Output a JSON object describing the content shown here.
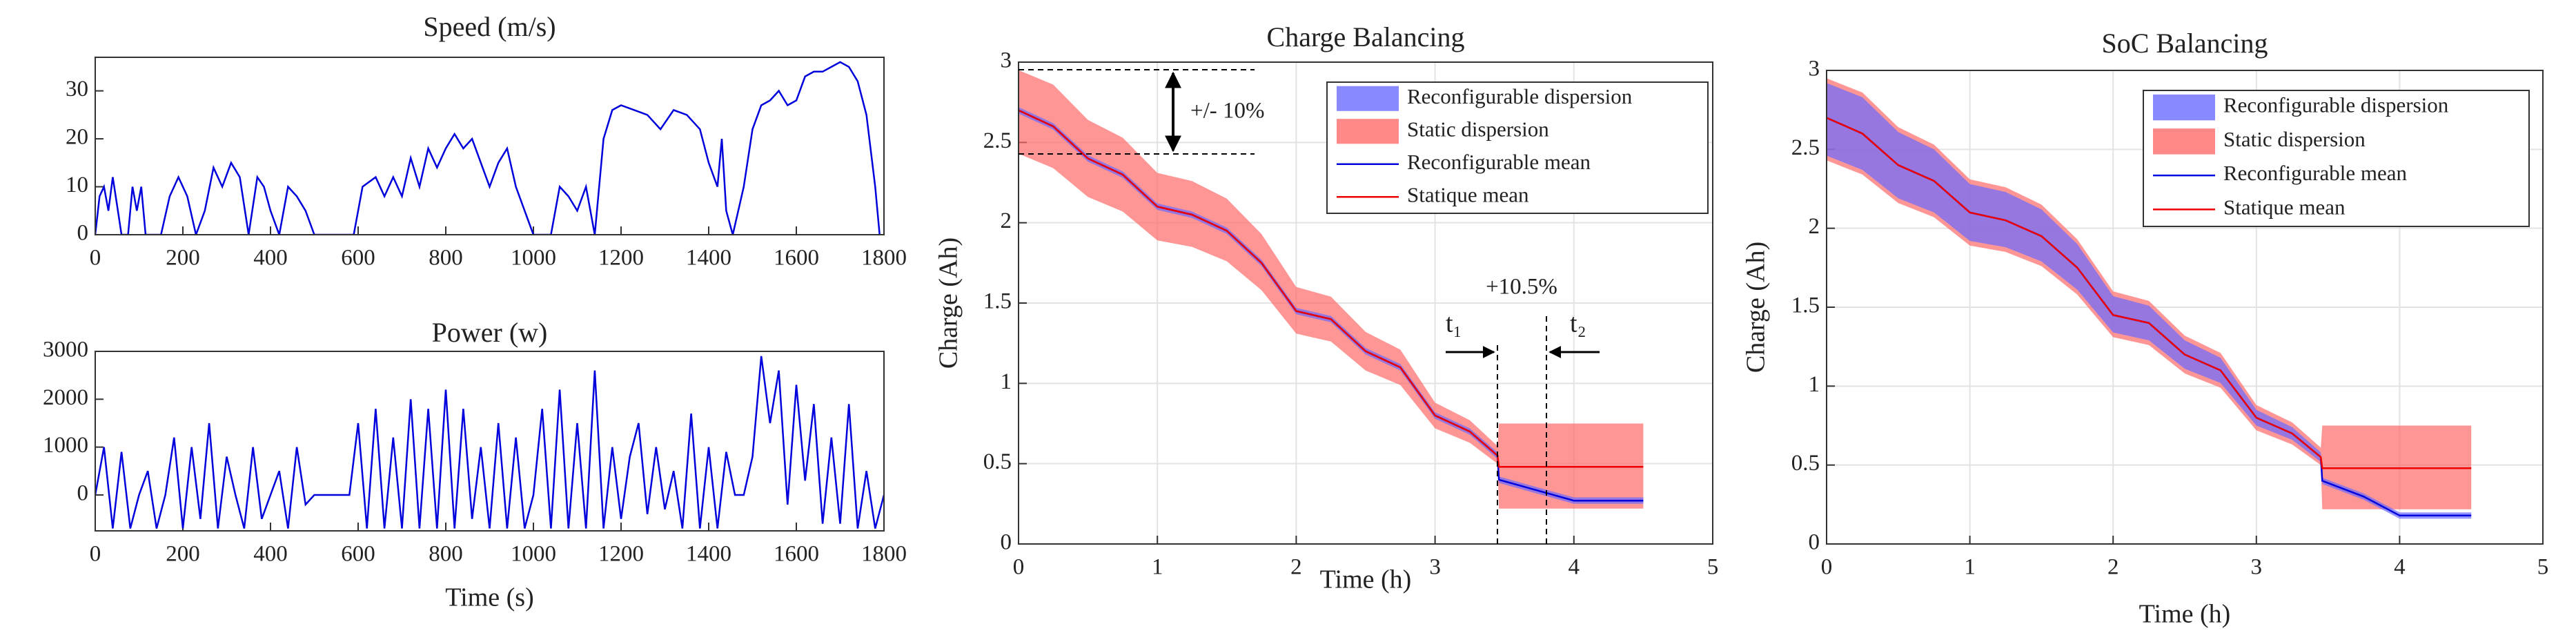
{
  "chart_data": [
    {
      "type": "line",
      "title": "Speed (m/s)",
      "x": [
        0,
        10,
        20,
        30,
        40,
        50,
        60,
        75,
        85,
        95,
        105,
        115,
        150,
        170,
        190,
        210,
        230,
        250,
        270,
        290,
        310,
        330,
        350,
        370,
        385,
        400,
        420,
        440,
        460,
        480,
        500,
        590,
        610,
        640,
        660,
        680,
        700,
        720,
        740,
        760,
        780,
        800,
        820,
        840,
        860,
        880,
        900,
        920,
        940,
        960,
        980,
        1000,
        1040,
        1060,
        1080,
        1100,
        1120,
        1140,
        1160,
        1180,
        1200,
        1230,
        1260,
        1290,
        1320,
        1350,
        1380,
        1400,
        1420,
        1430,
        1440,
        1455,
        1480,
        1500,
        1520,
        1540,
        1560,
        1580,
        1600,
        1620,
        1640,
        1660,
        1680,
        1700,
        1720,
        1740,
        1760,
        1780,
        1790
      ],
      "series": [
        {
          "color": "#0000dd",
          "values": [
            0,
            8,
            10,
            5,
            12,
            6,
            0,
            0,
            10,
            5,
            10,
            0,
            0,
            8,
            12,
            8,
            0,
            5,
            14,
            10,
            15,
            12,
            0,
            12,
            10,
            5,
            0,
            10,
            8,
            5,
            0,
            0,
            10,
            12,
            8,
            12,
            8,
            16,
            10,
            18,
            14,
            18,
            21,
            18,
            20,
            15,
            10,
            15,
            18,
            10,
            5,
            0,
            0,
            10,
            8,
            5,
            10,
            0,
            20,
            26,
            27,
            26,
            25,
            22,
            26,
            25,
            22,
            15,
            10,
            20,
            5,
            0,
            10,
            22,
            27,
            28,
            30,
            27,
            28,
            33,
            34,
            34,
            35,
            36,
            35,
            32,
            25,
            10,
            0
          ]
        }
      ],
      "xlim": [
        0,
        1800
      ],
      "xticks": [
        0,
        200,
        400,
        600,
        800,
        1000,
        1200,
        1400,
        1600,
        1800
      ],
      "ylim": [
        0,
        37
      ],
      "yticks": [
        0,
        10,
        20,
        30
      ],
      "grid": false
    },
    {
      "type": "line",
      "title": "Power (w)",
      "x_label": "Time (s)",
      "x": [
        0,
        20,
        40,
        60,
        80,
        100,
        120,
        140,
        160,
        180,
        200,
        220,
        240,
        260,
        280,
        300,
        320,
        340,
        360,
        380,
        400,
        420,
        440,
        460,
        480,
        500,
        520,
        540,
        560,
        580,
        600,
        620,
        640,
        660,
        680,
        700,
        720,
        740,
        760,
        780,
        800,
        820,
        840,
        860,
        880,
        900,
        920,
        940,
        960,
        980,
        1000,
        1020,
        1040,
        1060,
        1080,
        1100,
        1120,
        1140,
        1160,
        1180,
        1200,
        1220,
        1240,
        1260,
        1280,
        1300,
        1320,
        1340,
        1360,
        1380,
        1400,
        1420,
        1440,
        1460,
        1480,
        1500,
        1520,
        1540,
        1560,
        1580,
        1600,
        1620,
        1640,
        1660,
        1680,
        1700,
        1720,
        1740,
        1760,
        1780,
        1800
      ],
      "series": [
        {
          "color": "#0000dd",
          "values": [
            0,
            1000,
            -700,
            900,
            -700,
            0,
            500,
            -700,
            0,
            1200,
            -700,
            1000,
            -500,
            1500,
            -700,
            800,
            0,
            -700,
            1000,
            -500,
            0,
            500,
            -700,
            1000,
            -200,
            0,
            0,
            0,
            0,
            0,
            1500,
            -700,
            1800,
            -700,
            1200,
            -700,
            2000,
            -700,
            1800,
            -700,
            2200,
            -700,
            1800,
            -500,
            1000,
            -700,
            1500,
            -700,
            1200,
            -700,
            0,
            1800,
            -700,
            2200,
            -700,
            1500,
            -700,
            2600,
            -700,
            1000,
            -500,
            800,
            1500,
            -400,
            1000,
            -300,
            500,
            -700,
            1700,
            -700,
            1000,
            -700,
            900,
            0,
            0,
            800,
            2900,
            1500,
            2600,
            -200,
            2300,
            300,
            1900,
            -600,
            1200,
            -600,
            1900,
            -700,
            500,
            -700,
            0
          ]
        }
      ],
      "xlim": [
        0,
        1800
      ],
      "xticks": [
        0,
        200,
        400,
        600,
        800,
        1000,
        1200,
        1400,
        1600,
        1800
      ],
      "ylim": [
        -750,
        3000
      ],
      "yticks": [
        0,
        1000,
        2000,
        3000
      ],
      "grid": false
    },
    {
      "type": "area",
      "title": "Charge Balancing",
      "x_label": "Time (h)",
      "y_label": "Charge  (Ah)",
      "annotations": [
        "+/- 10%",
        "+10.5%",
        "t₁",
        "t₂"
      ],
      "x": [
        0,
        0.25,
        0.5,
        0.75,
        1,
        1.25,
        1.5,
        1.75,
        2,
        2.25,
        2.5,
        2.75,
        3,
        3.25,
        3.45,
        3.46,
        3.75,
        4,
        4.25,
        4.5
      ],
      "series": [
        {
          "name": "Reconfigurable dispersion",
          "color": "#6a6aff",
          "upper": [
            2.72,
            2.62,
            2.42,
            2.32,
            2.12,
            2.07,
            1.97,
            1.77,
            1.47,
            1.42,
            1.22,
            1.12,
            0.82,
            0.72,
            0.57,
            0.42,
            0.35,
            0.29,
            0.29,
            0.29
          ],
          "lower": [
            2.68,
            2.58,
            2.38,
            2.28,
            2.08,
            2.03,
            1.93,
            1.73,
            1.43,
            1.38,
            1.18,
            1.08,
            0.78,
            0.68,
            0.53,
            0.38,
            0.31,
            0.25,
            0.25,
            0.25
          ]
        },
        {
          "name": "Static dispersion",
          "color": "#ff6a6a",
          "upper": [
            2.95,
            2.86,
            2.64,
            2.53,
            2.31,
            2.26,
            2.15,
            1.93,
            1.6,
            1.54,
            1.32,
            1.21,
            0.88,
            0.77,
            0.61,
            0.75,
            0.75,
            0.75,
            0.75,
            0.75
          ],
          "lower": [
            2.43,
            2.34,
            2.16,
            2.07,
            1.89,
            1.85,
            1.76,
            1.58,
            1.31,
            1.26,
            1.08,
            0.99,
            0.72,
            0.63,
            0.5,
            0.22,
            0.22,
            0.22,
            0.22,
            0.22
          ]
        },
        {
          "name": "Reconfigurable mean",
          "color": "#0000dd",
          "values": [
            2.7,
            2.6,
            2.4,
            2.3,
            2.1,
            2.05,
            1.95,
            1.75,
            1.45,
            1.4,
            1.2,
            1.1,
            0.8,
            0.7,
            0.55,
            0.4,
            0.33,
            0.27,
            0.27,
            0.27
          ]
        },
        {
          "name": "Statique mean",
          "color": "#ee0000",
          "values": [
            2.7,
            2.6,
            2.4,
            2.3,
            2.1,
            2.05,
            1.95,
            1.75,
            1.45,
            1.4,
            1.2,
            1.1,
            0.8,
            0.7,
            0.55,
            0.48,
            0.48,
            0.48,
            0.48,
            0.48
          ]
        }
      ],
      "xlim": [
        0,
        5
      ],
      "xticks": [
        0,
        1,
        2,
        3,
        4,
        5
      ],
      "ylim": [
        0,
        3
      ],
      "yticks": [
        0,
        0.5,
        1,
        1.5,
        2,
        2.5,
        3
      ],
      "grid": true,
      "legend": "top-right"
    },
    {
      "type": "area",
      "title": "SoC Balancing",
      "x_label": "Time (h)",
      "y_label": "Charge  (Ah)",
      "x": [
        0,
        0.25,
        0.5,
        0.75,
        1,
        1.25,
        1.5,
        1.75,
        2,
        2.25,
        2.5,
        2.75,
        3,
        3.25,
        3.45,
        3.46,
        3.75,
        4,
        4.25,
        4.5
      ],
      "series": [
        {
          "name": "Reconfigurable dispersion",
          "color": "#6a6aff",
          "upper": [
            2.92,
            2.83,
            2.61,
            2.5,
            2.28,
            2.23,
            2.12,
            1.9,
            1.57,
            1.51,
            1.29,
            1.18,
            0.85,
            0.74,
            0.58,
            0.42,
            0.32,
            0.2,
            0.2,
            0.2
          ],
          "lower": [
            2.46,
            2.37,
            2.19,
            2.1,
            1.92,
            1.88,
            1.79,
            1.61,
            1.34,
            1.29,
            1.11,
            1.02,
            0.75,
            0.66,
            0.52,
            0.38,
            0.28,
            0.16,
            0.16,
            0.16
          ]
        },
        {
          "name": "Static dispersion",
          "color": "#ff6a6a",
          "upper": [
            2.95,
            2.86,
            2.64,
            2.53,
            2.31,
            2.26,
            2.15,
            1.93,
            1.6,
            1.54,
            1.32,
            1.21,
            0.88,
            0.77,
            0.61,
            0.75,
            0.75,
            0.75,
            0.75,
            0.75
          ],
          "lower": [
            2.43,
            2.34,
            2.16,
            2.07,
            1.89,
            1.85,
            1.76,
            1.58,
            1.31,
            1.26,
            1.08,
            0.99,
            0.72,
            0.63,
            0.5,
            0.22,
            0.22,
            0.22,
            0.22,
            0.22
          ]
        },
        {
          "name": "Reconfigurable mean",
          "color": "#0000dd",
          "values": [
            2.7,
            2.6,
            2.4,
            2.3,
            2.1,
            2.05,
            1.95,
            1.75,
            1.45,
            1.4,
            1.2,
            1.1,
            0.8,
            0.7,
            0.55,
            0.4,
            0.3,
            0.18,
            0.18,
            0.18
          ]
        },
        {
          "name": "Statique mean",
          "color": "#ee0000",
          "values": [
            2.7,
            2.6,
            2.4,
            2.3,
            2.1,
            2.05,
            1.95,
            1.75,
            1.45,
            1.4,
            1.2,
            1.1,
            0.8,
            0.7,
            0.55,
            0.48,
            0.48,
            0.48,
            0.48,
            0.48
          ]
        }
      ],
      "xlim": [
        0,
        5
      ],
      "xticks": [
        0,
        1,
        2,
        3,
        4,
        5
      ],
      "ylim": [
        0,
        3
      ],
      "yticks": [
        0,
        0.5,
        1,
        1.5,
        2,
        2.5,
        3
      ],
      "grid": true,
      "legend": "top-right"
    }
  ]
}
